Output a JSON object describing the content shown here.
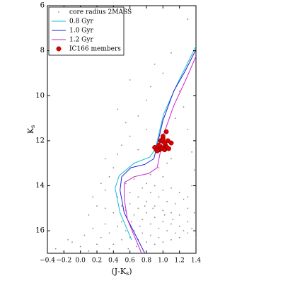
{
  "chart_data": {
    "type": "scatter",
    "x_label": {
      "main": "(J-K",
      "sub": "s",
      "end": ")"
    },
    "y_label": {
      "main": "K",
      "sub": "s"
    },
    "xlim": [
      -0.4,
      1.4
    ],
    "ylim": [
      17,
      6
    ],
    "xticks": [
      {
        "value": -0.4,
        "label": "−0.4"
      },
      {
        "value": -0.2,
        "label": "−0.2"
      },
      {
        "value": 0,
        "label": "0.0"
      },
      0.2,
      0.4,
      0.6,
      0.8,
      {
        "value": 1,
        "label": "1.0"
      },
      1.2,
      1.4
    ],
    "yticks": [
      6,
      8,
      10,
      12,
      14,
      16
    ],
    "legend": "upper left",
    "series": [
      {
        "name": "core radius 2MASS",
        "type": "scatter",
        "color": "#888888",
        "x": [
          -0.3,
          -0.2,
          -0.1,
          0.0,
          0.05,
          0.1,
          -0.15,
          0.15,
          0.2,
          0.25,
          0.3,
          0.35,
          0.1,
          0.2,
          0.3,
          0.35,
          0.4,
          0.3,
          0.25,
          0.15,
          0.45,
          0.5,
          0.6,
          0.55,
          0.7,
          0.45,
          0.8,
          0.85,
          0.6,
          1.0,
          0.9,
          1.1,
          1.2,
          1.3,
          1.25,
          1.15,
          1.3,
          1.35,
          1.38,
          0.7,
          0.8,
          0.65,
          0.45,
          0.5,
          0.55,
          0.6,
          0.65,
          0.7,
          0.75,
          0.8,
          0.85,
          0.9,
          0.95,
          1.0,
          1.05,
          1.1,
          1.15,
          1.2,
          1.25,
          1.3,
          1.35,
          1.38,
          0.5,
          0.55,
          0.6,
          0.65,
          0.7,
          0.75,
          0.8,
          0.85,
          0.9,
          0.95,
          1.0,
          1.1,
          1.2,
          1.3,
          0.6,
          0.7,
          0.8,
          0.9,
          1.0,
          1.1,
          1.2,
          1.3,
          0.75,
          0.85,
          0.95,
          1.05,
          1.15,
          1.25,
          0.65,
          0.8,
          0.9,
          1.0,
          1.1,
          1.2,
          0.4,
          0.45,
          0.35,
          0.4,
          0.5,
          0.3,
          0.55,
          0.85,
          1.0,
          0.95,
          1.05,
          1.1,
          1.3,
          1.35,
          1.4,
          0.58,
          0.68,
          0.72,
          0.88,
          1.02,
          1.12,
          0.62,
          0.78
        ],
        "values": [
          16.8,
          16.9,
          16.5,
          16.7,
          16.2,
          16.9,
          16.4,
          15.9,
          16.6,
          16.3,
          15.7,
          16.8,
          15.3,
          14.9,
          14.2,
          13.6,
          13.2,
          12.8,
          13.9,
          14.5,
          12.6,
          12.2,
          11.8,
          11.2,
          10.9,
          10.6,
          10.2,
          9.6,
          9.3,
          9.0,
          8.6,
          8.1,
          9.8,
          6.6,
          10.5,
          11.0,
          11.5,
          12.5,
          13.3,
          12.4,
          11.5,
          13.0,
          14.5,
          14.9,
          15.1,
          14.8,
          15.3,
          15.0,
          15.5,
          15.2,
          15.7,
          15.4,
          15.9,
          15.6,
          16.0,
          15.7,
          16.1,
          15.8,
          16.0,
          15.6,
          15.9,
          15.2,
          15.6,
          16.0,
          16.3,
          16.0,
          16.4,
          16.1,
          16.5,
          16.2,
          16.6,
          16.3,
          16.5,
          16.4,
          16.3,
          16.1,
          14.3,
          14.5,
          14.7,
          14.9,
          15.1,
          15.2,
          15.3,
          15.0,
          14.1,
          14.3,
          14.5,
          14.7,
          14.8,
          14.6,
          13.7,
          13.9,
          14.0,
          14.2,
          14.1,
          14.3,
          15.2,
          15.8,
          16.1,
          16.6,
          16.4,
          15.0,
          13.9,
          13.5,
          13.6,
          13.2,
          13.0,
          12.8,
          14.5,
          14.0,
          16.3,
          16.8,
          16.7,
          15.8,
          15.0,
          15.3,
          15.5,
          15.6,
          14.9
        ]
      },
      {
        "name": "0.8 Gyr",
        "type": "line",
        "color": "#17becf",
        "x": [
          0.62,
          0.48,
          0.42,
          0.47,
          0.65,
          0.84,
          0.91,
          0.95,
          1.01,
          1.17,
          1.4
        ],
        "values": [
          16.4,
          15.2,
          14.1,
          13.55,
          13.0,
          12.73,
          12.35,
          11.7,
          10.8,
          9.5,
          7.8
        ]
      },
      {
        "name": "1.0 Gyr",
        "type": "line",
        "color": "#2222dd",
        "x": [
          0.78,
          0.53,
          0.48,
          0.5,
          0.61,
          0.78,
          0.89,
          0.93,
          1.0,
          1.13,
          1.27,
          1.4
        ],
        "values": [
          17,
          15.2,
          14.2,
          13.6,
          13.2,
          13.05,
          12.8,
          12.2,
          11.1,
          9.8,
          8.9,
          7.95
        ]
      },
      {
        "name": "1.2 Gyr",
        "type": "line",
        "color": "#cc22cc",
        "x": [
          0.74,
          0.57,
          0.53,
          0.53,
          0.65,
          0.83,
          0.93,
          0.96,
          1.01,
          1.13,
          1.27,
          1.4
        ],
        "values": [
          17,
          15.5,
          14.55,
          13.86,
          13.6,
          13.45,
          13.2,
          12.65,
          11.7,
          10.45,
          9.35,
          8.25
        ]
      },
      {
        "name": "IC166 members",
        "type": "scatter",
        "color": "#dd0000",
        "x": [
          0.9,
          0.92,
          0.94,
          0.96,
          0.98,
          1.0,
          1.02,
          0.95,
          0.97,
          1.0,
          1.03,
          1.05,
          1.07,
          1.1,
          1.04,
          1.0,
          1.06,
          0.93,
          1.0,
          1.02
        ],
        "values": [
          12.3,
          12.4,
          12.35,
          12.4,
          12.3,
          12.35,
          12.4,
          12.2,
          12.0,
          11.9,
          12.2,
          12.3,
          12.35,
          12.1,
          11.6,
          11.8,
          12.0,
          12.45,
          11.95,
          12.1
        ]
      }
    ]
  }
}
